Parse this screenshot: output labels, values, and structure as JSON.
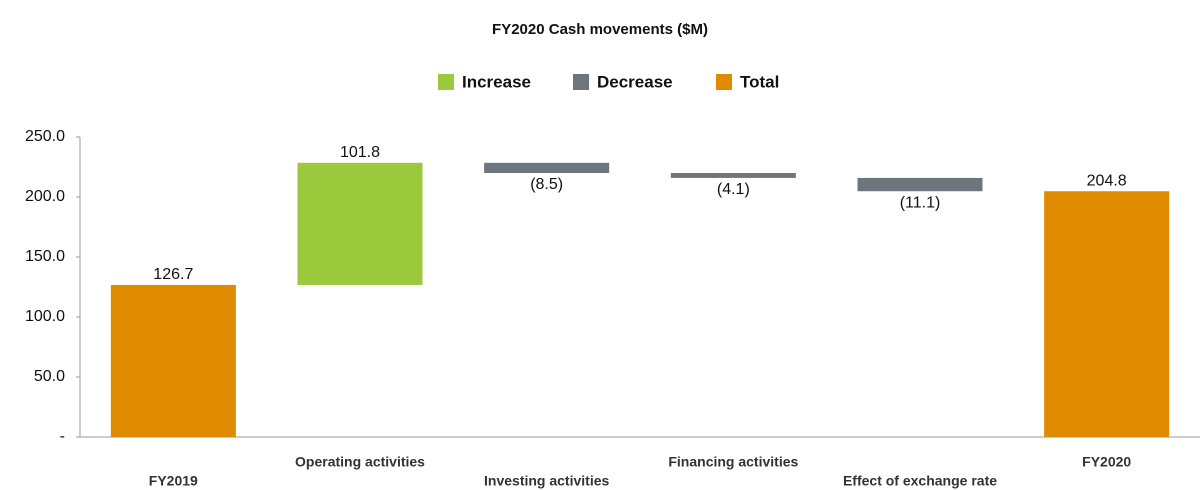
{
  "chart_data": {
    "type": "waterfall",
    "title": "FY2020 Cash movements ($M)",
    "categories": [
      "FY2019",
      "Operating activities",
      "Investing activities",
      "Financing activities",
      "Effect of exchange rate",
      "FY2020"
    ],
    "series": [
      {
        "name": "Increase",
        "color": "#9bc93b",
        "values": [
          null,
          101.8,
          null,
          null,
          null,
          null
        ]
      },
      {
        "name": "Decrease",
        "color": "#6d757d",
        "values": [
          null,
          null,
          -8.5,
          -4.1,
          -11.1,
          null
        ],
        "value_labels": [
          null,
          null,
          "(8.5)",
          "(4.1)",
          "(11.1)",
          null
        ]
      },
      {
        "name": "Total",
        "color": "#e08a00",
        "values": [
          126.7,
          null,
          null,
          null,
          null,
          204.8
        ]
      }
    ],
    "total_series": "Total",
    "ylim": [
      0,
      250
    ],
    "yticks": [
      {
        "value": 0,
        "label": "-"
      },
      {
        "value": 50,
        "label": "50.0"
      },
      {
        "value": 100,
        "label": "100.0"
      },
      {
        "value": 150,
        "label": "150.0"
      },
      {
        "value": 200,
        "label": "200.0"
      },
      {
        "value": 250,
        "label": "250.0"
      }
    ],
    "grid": false
  }
}
